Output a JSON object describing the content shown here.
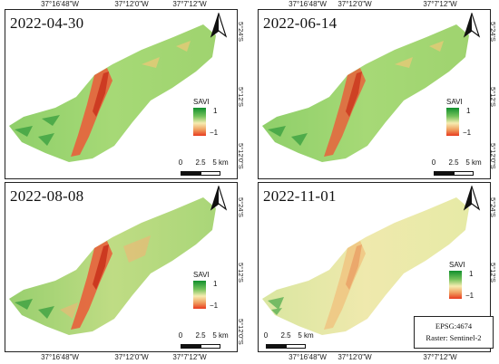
{
  "longitude_labels": [
    "37°16'48\"W",
    "37°12'0\"W",
    "37°7'12\"W"
  ],
  "latitude_labels": [
    "5°24'S",
    "5°12'S",
    "5°12'0\"S"
  ],
  "panels": [
    {
      "date": "2022-04-30",
      "tone": "green"
    },
    {
      "date": "2022-06-14",
      "tone": "green"
    },
    {
      "date": "2022-08-08",
      "tone": "mixed"
    },
    {
      "date": "2022-11-01",
      "tone": "pale"
    }
  ],
  "legend": {
    "title": "SAVI",
    "max_label": "1",
    "min_label": "−1",
    "colors": [
      "#118f2d",
      "#73c15a",
      "#f6ecb0",
      "#f0a060",
      "#e83a1f"
    ]
  },
  "scalebar": {
    "labels": [
      "0",
      "2.5",
      "5 km"
    ]
  },
  "info": {
    "epsg": "EPSG:4674",
    "raster": "Raster: Sentinel-2"
  }
}
